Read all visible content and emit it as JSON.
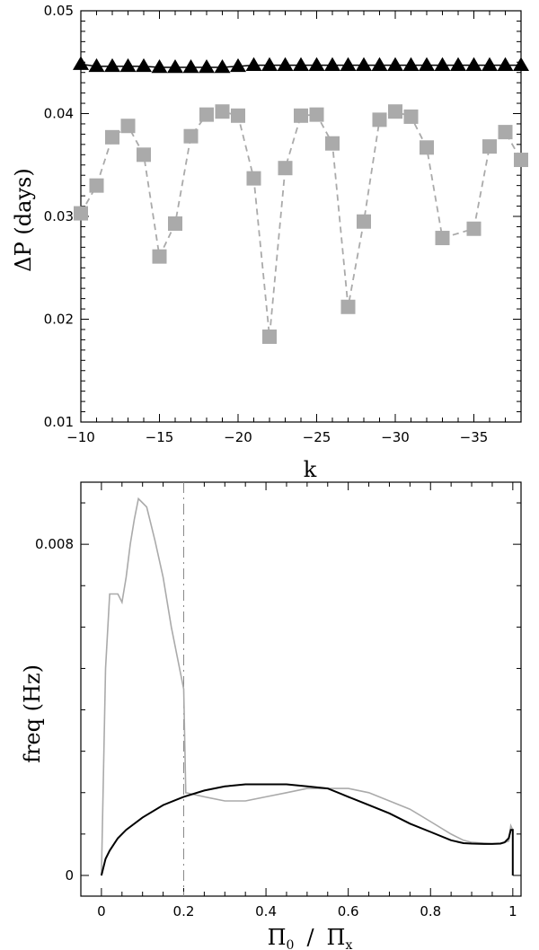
{
  "chart_data": [
    {
      "type": "scatter",
      "xlabel": "k",
      "ylabel": "ΔP (days)",
      "xlim": [
        -10,
        -38
      ],
      "ylim": [
        0.01,
        0.05
      ],
      "x_ticks": [
        "-10",
        "-15",
        "-20",
        "-25",
        "-30",
        "-35"
      ],
      "y_ticks": [
        "0.01",
        "0.02",
        "0.03",
        "0.04",
        "0.05"
      ],
      "series": [
        {
          "marker": "triangle",
          "color": "#000000",
          "x": [
            -10,
            -11,
            -12,
            -13,
            -14,
            -15,
            -16,
            -17,
            -18,
            -19,
            -20,
            -21,
            -22,
            -23,
            -24,
            -25,
            -26,
            -27,
            -28,
            -29,
            -30,
            -31,
            -32,
            -33,
            -34,
            -35,
            -36,
            -37,
            -38
          ],
          "y": [
            0.0448,
            0.0446,
            0.0446,
            0.0446,
            0.0446,
            0.0445,
            0.0445,
            0.0445,
            0.0445,
            0.0445,
            0.0446,
            0.0447,
            0.0447,
            0.0447,
            0.0447,
            0.0447,
            0.0447,
            0.0447,
            0.0447,
            0.0447,
            0.0447,
            0.0447,
            0.0447,
            0.0447,
            0.0447,
            0.0447,
            0.0447,
            0.0447,
            0.0447
          ]
        },
        {
          "marker": "square",
          "line": "dashed",
          "color": "#aaaaaa",
          "x": [
            -10,
            -11,
            -12,
            -13,
            -14,
            -15,
            -16,
            -17,
            -18,
            -19,
            -20,
            -21,
            -22,
            -23,
            -24,
            -25,
            -26,
            -27,
            -28,
            -29,
            -30,
            -31,
            -32,
            -33,
            -35,
            -36,
            -37,
            -38
          ],
          "y": [
            0.0303,
            0.033,
            0.0377,
            0.0388,
            0.036,
            0.0261,
            0.0293,
            0.0378,
            0.0399,
            0.0402,
            0.0398,
            0.0337,
            0.0183,
            0.0347,
            0.0398,
            0.0399,
            0.0371,
            0.0212,
            0.0295,
            0.0394,
            0.0402,
            0.0397,
            0.0367,
            0.0279,
            0.0288,
            0.0368,
            0.0382,
            0.0355
          ]
        }
      ]
    },
    {
      "type": "line",
      "xlabel_main": "Π",
      "xlabel_sub0": "0",
      "xlabel_sep": "/",
      "xlabel_main2": "Π",
      "xlabel_sub1": "x",
      "ylabel": "freq (Hz)",
      "xlim": [
        -0.05,
        1.02
      ],
      "ylim": [
        -0.0005,
        0.0095
      ],
      "x_ticks": [
        "0",
        "0.2",
        "0.4",
        "0.6",
        "0.8",
        "1"
      ],
      "y_ticks": [
        "0",
        "0.008"
      ],
      "vline_x": 0.2,
      "series": [
        {
          "color": "#aaaaaa",
          "x": [
            0,
            0.01,
            0.02,
            0.03,
            0.04,
            0.05,
            0.06,
            0.07,
            0.08,
            0.09,
            0.1,
            0.11,
            0.13,
            0.15,
            0.17,
            0.19,
            0.2,
            0.205,
            0.25,
            0.3,
            0.35,
            0.4,
            0.45,
            0.5,
            0.55,
            0.6,
            0.65,
            0.7,
            0.75,
            0.8,
            0.85,
            0.88,
            0.9,
            0.93,
            0.95,
            0.97,
            0.98,
            0.99,
            0.995,
            1.0
          ],
          "y": [
            0,
            0.005,
            0.0068,
            0.0068,
            0.0068,
            0.0066,
            0.0072,
            0.008,
            0.0086,
            0.0091,
            0.009,
            0.0089,
            0.0081,
            0.0072,
            0.006,
            0.005,
            0.0045,
            0.002,
            0.0019,
            0.0018,
            0.0018,
            0.0019,
            0.002,
            0.0021,
            0.0021,
            0.0021,
            0.002,
            0.0018,
            0.0016,
            0.0013,
            0.001,
            0.00085,
            0.0008,
            0.00078,
            0.00077,
            0.00078,
            0.0008,
            0.00083,
            0.0012,
            0.0011
          ]
        },
        {
          "color": "#000000",
          "x": [
            0,
            0.01,
            0.02,
            0.04,
            0.06,
            0.1,
            0.15,
            0.2,
            0.25,
            0.3,
            0.35,
            0.4,
            0.45,
            0.5,
            0.55,
            0.6,
            0.65,
            0.7,
            0.75,
            0.8,
            0.85,
            0.88,
            0.9,
            0.93,
            0.95,
            0.97,
            0.98,
            0.99,
            0.995,
            1.0,
            1.0
          ],
          "y": [
            0,
            0.0004,
            0.0006,
            0.0009,
            0.0011,
            0.0014,
            0.0017,
            0.0019,
            0.00205,
            0.00215,
            0.0022,
            0.0022,
            0.0022,
            0.00215,
            0.0021,
            0.0019,
            0.0017,
            0.0015,
            0.00125,
            0.00105,
            0.00085,
            0.00078,
            0.00077,
            0.00076,
            0.00076,
            0.00077,
            0.0008,
            0.0009,
            0.0011,
            0.0011,
            0.0
          ]
        }
      ]
    }
  ]
}
